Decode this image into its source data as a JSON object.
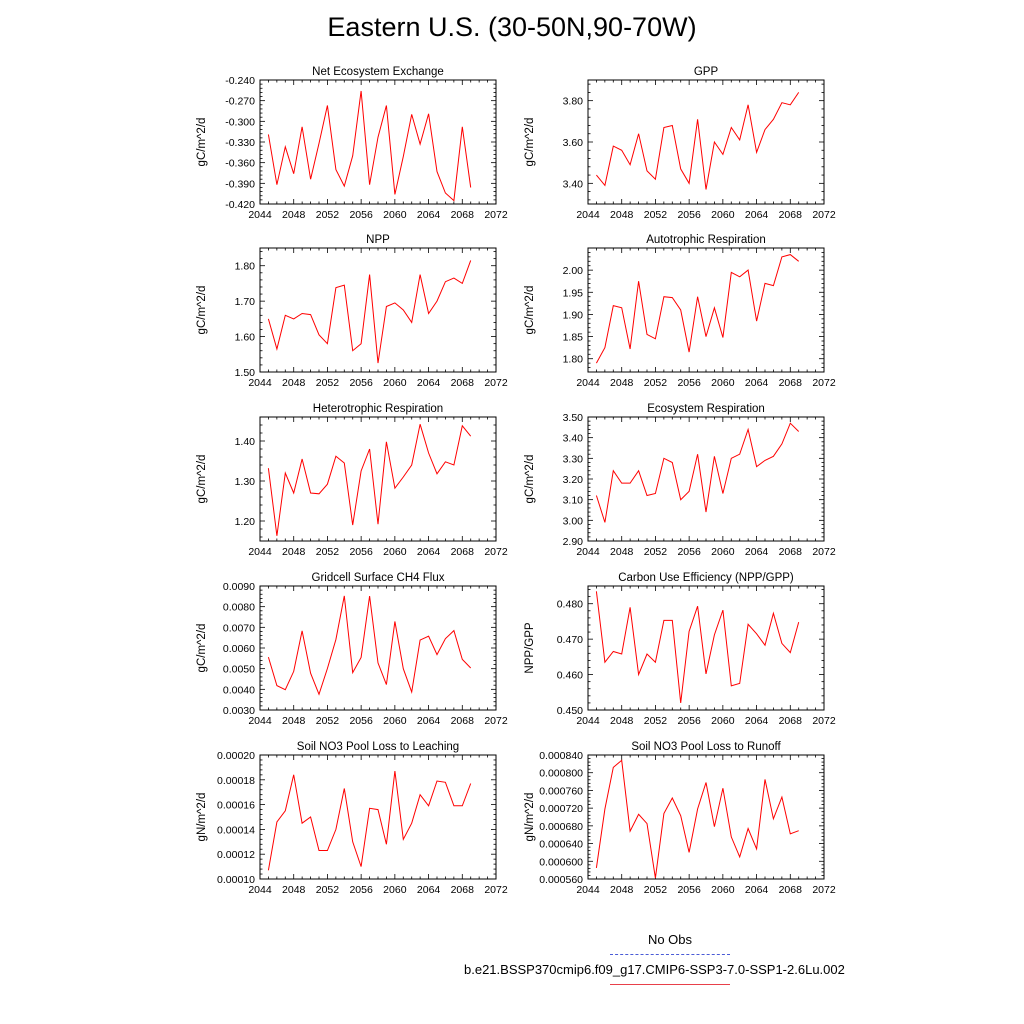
{
  "title": "Eastern U.S. (30-50N,90-70W)",
  "legend": {
    "placement": "bottom-right",
    "entries": [
      {
        "label": "No Obs",
        "color": "#4a5bd6",
        "style": "dashed"
      },
      {
        "label": "b.e21.BSSP370cmip6.f09_g17.CMIP6-SSP3-7.0-SSP1-2.6Lu.002",
        "color": "#ff0000",
        "style": "solid"
      }
    ]
  },
  "chart_data": [
    {
      "type": "line",
      "title": "Net Ecosystem Exchange",
      "ylabel": "gC/m^2/d",
      "xlim": [
        2044,
        2072
      ],
      "xticks": [
        2044,
        2048,
        2052,
        2056,
        2060,
        2064,
        2068,
        2072
      ],
      "ylim": [
        -0.42,
        -0.24
      ],
      "yticks": [
        "-0.420",
        "-0.390",
        "-0.360",
        "-0.330",
        "-0.300",
        "-0.270",
        "-0.240"
      ],
      "color": "#ff0000",
      "x": [
        2045,
        2046,
        2047,
        2048,
        2049,
        2050,
        2051,
        2052,
        2053,
        2054,
        2055,
        2056,
        2057,
        2058,
        2059,
        2060,
        2061,
        2062,
        2063,
        2064,
        2065,
        2066,
        2067,
        2068,
        2069
      ],
      "y": [
        -0.319,
        -0.392,
        -0.337,
        -0.376,
        -0.308,
        -0.384,
        -0.332,
        -0.277,
        -0.37,
        -0.394,
        -0.35,
        -0.256,
        -0.392,
        -0.323,
        -0.277,
        -0.406,
        -0.351,
        -0.29,
        -0.333,
        -0.289,
        -0.373,
        -0.404,
        -0.415,
        -0.308,
        -0.396
      ]
    },
    {
      "type": "line",
      "title": "GPP",
      "ylabel": "gC/m^2/d",
      "xlim": [
        2044,
        2072
      ],
      "xticks": [
        2044,
        2048,
        2052,
        2056,
        2060,
        2064,
        2068,
        2072
      ],
      "ylim": [
        3.3,
        3.9
      ],
      "yticks": [
        "3.40",
        "3.60",
        "3.80"
      ],
      "color": "#ff0000",
      "x": [
        2045,
        2046,
        2047,
        2048,
        2049,
        2050,
        2051,
        2052,
        2053,
        2054,
        2055,
        2056,
        2057,
        2058,
        2059,
        2060,
        2061,
        2062,
        2063,
        2064,
        2065,
        2066,
        2067,
        2068,
        2069
      ],
      "y": [
        3.44,
        3.39,
        3.58,
        3.56,
        3.49,
        3.64,
        3.46,
        3.42,
        3.67,
        3.68,
        3.47,
        3.4,
        3.71,
        3.37,
        3.6,
        3.54,
        3.67,
        3.61,
        3.78,
        3.55,
        3.66,
        3.71,
        3.79,
        3.78,
        3.84
      ]
    },
    {
      "type": "line",
      "title": "NPP",
      "ylabel": "gC/m^2/d",
      "xlim": [
        2044,
        2072
      ],
      "xticks": [
        2044,
        2048,
        2052,
        2056,
        2060,
        2064,
        2068,
        2072
      ],
      "ylim": [
        1.5,
        1.85
      ],
      "yticks": [
        "1.50",
        "1.60",
        "1.70",
        "1.80"
      ],
      "color": "#ff0000",
      "x": [
        2045,
        2046,
        2047,
        2048,
        2049,
        2050,
        2051,
        2052,
        2053,
        2054,
        2055,
        2056,
        2057,
        2058,
        2059,
        2060,
        2061,
        2062,
        2063,
        2064,
        2065,
        2066,
        2067,
        2068,
        2069
      ],
      "y": [
        1.65,
        1.565,
        1.66,
        1.65,
        1.665,
        1.662,
        1.605,
        1.58,
        1.738,
        1.745,
        1.56,
        1.58,
        1.775,
        1.525,
        1.685,
        1.695,
        1.675,
        1.64,
        1.775,
        1.665,
        1.7,
        1.755,
        1.765,
        1.75,
        1.815
      ]
    },
    {
      "type": "line",
      "title": "Autotrophic Respiration",
      "ylabel": "gC/m^2/d",
      "xlim": [
        2044,
        2072
      ],
      "xticks": [
        2044,
        2048,
        2052,
        2056,
        2060,
        2064,
        2068,
        2072
      ],
      "ylim": [
        1.77,
        2.05
      ],
      "yticks": [
        "1.80",
        "1.85",
        "1.90",
        "1.95",
        "2.00"
      ],
      "color": "#ff0000",
      "x": [
        2045,
        2046,
        2047,
        2048,
        2049,
        2050,
        2051,
        2052,
        2053,
        2054,
        2055,
        2056,
        2057,
        2058,
        2059,
        2060,
        2061,
        2062,
        2063,
        2064,
        2065,
        2066,
        2067,
        2068,
        2069
      ],
      "y": [
        1.79,
        1.825,
        1.92,
        1.915,
        1.822,
        1.975,
        1.855,
        1.845,
        1.94,
        1.938,
        1.91,
        1.815,
        1.94,
        1.85,
        1.915,
        1.848,
        1.995,
        1.985,
        2.0,
        1.885,
        1.97,
        1.965,
        2.03,
        2.035,
        2.02
      ]
    },
    {
      "type": "line",
      "title": "Heterotrophic Respiration",
      "ylabel": "gC/m^2/d",
      "xlim": [
        2044,
        2072
      ],
      "xticks": [
        2044,
        2048,
        2052,
        2056,
        2060,
        2064,
        2068,
        2072
      ],
      "ylim": [
        1.15,
        1.46
      ],
      "yticks": [
        "1.20",
        "1.30",
        "1.40"
      ],
      "color": "#ff0000",
      "x": [
        2045,
        2046,
        2047,
        2048,
        2049,
        2050,
        2051,
        2052,
        2053,
        2054,
        2055,
        2056,
        2057,
        2058,
        2059,
        2060,
        2061,
        2062,
        2063,
        2064,
        2065,
        2066,
        2067,
        2068,
        2069
      ],
      "y": [
        1.332,
        1.163,
        1.32,
        1.27,
        1.355,
        1.27,
        1.268,
        1.292,
        1.362,
        1.345,
        1.19,
        1.325,
        1.38,
        1.192,
        1.398,
        1.282,
        1.31,
        1.34,
        1.442,
        1.37,
        1.318,
        1.348,
        1.34,
        1.438,
        1.412
      ]
    },
    {
      "type": "line",
      "title": "Ecosystem Respiration",
      "ylabel": "gC/m^2/d",
      "xlim": [
        2044,
        2072
      ],
      "xticks": [
        2044,
        2048,
        2052,
        2056,
        2060,
        2064,
        2068,
        2072
      ],
      "ylim": [
        2.9,
        3.5
      ],
      "yticks": [
        "2.90",
        "3.00",
        "3.10",
        "3.20",
        "3.30",
        "3.40",
        "3.50"
      ],
      "color": "#ff0000",
      "x": [
        2045,
        2046,
        2047,
        2048,
        2049,
        2050,
        2051,
        2052,
        2053,
        2054,
        2055,
        2056,
        2057,
        2058,
        2059,
        2060,
        2061,
        2062,
        2063,
        2064,
        2065,
        2066,
        2067,
        2068,
        2069
      ],
      "y": [
        3.12,
        2.99,
        3.24,
        3.18,
        3.18,
        3.24,
        3.12,
        3.13,
        3.3,
        3.28,
        3.1,
        3.14,
        3.32,
        3.04,
        3.31,
        3.13,
        3.3,
        3.32,
        3.44,
        3.26,
        3.29,
        3.31,
        3.37,
        3.47,
        3.43
      ]
    },
    {
      "type": "line",
      "title": "Gridcell Surface CH4 Flux",
      "ylabel": "gC/m^2/d",
      "xlim": [
        2044,
        2072
      ],
      "xticks": [
        2044,
        2048,
        2052,
        2056,
        2060,
        2064,
        2068,
        2072
      ],
      "ylim": [
        0.003,
        0.009
      ],
      "yticks": [
        "0.0030",
        "0.0040",
        "0.0050",
        "0.0060",
        "0.0070",
        "0.0080",
        "0.0090"
      ],
      "color": "#ff0000",
      "x": [
        2045,
        2046,
        2047,
        2048,
        2049,
        2050,
        2051,
        2052,
        2053,
        2054,
        2055,
        2056,
        2057,
        2058,
        2059,
        2060,
        2061,
        2062,
        2063,
        2064,
        2065,
        2066,
        2067,
        2068,
        2069
      ],
      "y": [
        0.00556,
        0.00418,
        0.00398,
        0.00487,
        0.00683,
        0.00478,
        0.00376,
        0.00501,
        0.00641,
        0.00852,
        0.00481,
        0.00554,
        0.00851,
        0.00528,
        0.00423,
        0.00728,
        0.005,
        0.00387,
        0.00638,
        0.00657,
        0.00568,
        0.00645,
        0.00684,
        0.00545,
        0.00503
      ]
    },
    {
      "type": "line",
      "title": "Carbon Use Efficiency (NPP/GPP)",
      "ylabel": "NPP/GPP",
      "xlim": [
        2044,
        2072
      ],
      "xticks": [
        2044,
        2048,
        2052,
        2056,
        2060,
        2064,
        2068,
        2072
      ],
      "ylim": [
        0.45,
        0.485
      ],
      "yticks": [
        "0.450",
        "0.460",
        "0.470",
        "0.480"
      ],
      "color": "#ff0000",
      "x": [
        2045,
        2046,
        2047,
        2048,
        2049,
        2050,
        2051,
        2052,
        2053,
        2054,
        2055,
        2056,
        2057,
        2058,
        2059,
        2060,
        2061,
        2062,
        2063,
        2064,
        2065,
        2066,
        2067,
        2068,
        2069
      ],
      "y": [
        0.4835,
        0.4635,
        0.4665,
        0.4658,
        0.479,
        0.46,
        0.4658,
        0.4635,
        0.4753,
        0.4753,
        0.452,
        0.4722,
        0.4793,
        0.4602,
        0.4712,
        0.4782,
        0.4568,
        0.4575,
        0.4742,
        0.4715,
        0.4683,
        0.4773,
        0.4688,
        0.4662,
        0.4748
      ]
    },
    {
      "type": "line",
      "title": "Soil NO3 Pool Loss to Leaching",
      "ylabel": "gN/m^2/d",
      "xlim": [
        2044,
        2072
      ],
      "xticks": [
        2044,
        2048,
        2052,
        2056,
        2060,
        2064,
        2068,
        2072
      ],
      "ylim": [
        0.0001,
        0.0002
      ],
      "yticks": [
        "0.00010",
        "0.00012",
        "0.00014",
        "0.00016",
        "0.00018",
        "0.00020"
      ],
      "color": "#ff0000",
      "x": [
        2045,
        2046,
        2047,
        2048,
        2049,
        2050,
        2051,
        2052,
        2053,
        2054,
        2055,
        2056,
        2057,
        2058,
        2059,
        2060,
        2061,
        2062,
        2063,
        2064,
        2065,
        2066,
        2067,
        2068,
        2069
      ],
      "y": [
        0.000107,
        0.000146,
        0.000155,
        0.000184,
        0.000145,
        0.00015,
        0.000123,
        0.000123,
        0.00014,
        0.000173,
        0.00013,
        0.00011,
        0.000157,
        0.000156,
        0.000128,
        0.000187,
        0.000132,
        0.000145,
        0.000168,
        0.000159,
        0.000179,
        0.000178,
        0.000159,
        0.000159,
        0.000177
      ]
    },
    {
      "type": "line",
      "title": "Soil NO3 Pool Loss to Runoff",
      "ylabel": "gN/m^2/d",
      "xlim": [
        2044,
        2072
      ],
      "xticks": [
        2044,
        2048,
        2052,
        2056,
        2060,
        2064,
        2068,
        2072
      ],
      "ylim": [
        0.00056,
        0.00084
      ],
      "yticks": [
        "0.000560",
        "0.000600",
        "0.000640",
        "0.000680",
        "0.000720",
        "0.000760",
        "0.000800",
        "0.000840"
      ],
      "color": "#ff0000",
      "x": [
        2045,
        2046,
        2047,
        2048,
        2049,
        2050,
        2051,
        2052,
        2053,
        2054,
        2055,
        2056,
        2057,
        2058,
        2059,
        2060,
        2061,
        2062,
        2063,
        2064,
        2065,
        2066,
        2067,
        2068,
        2069
      ],
      "y": [
        0.000585,
        0.000718,
        0.000812,
        0.000828,
        0.000668,
        0.000706,
        0.000685,
        0.000562,
        0.000708,
        0.000743,
        0.000703,
        0.00062,
        0.000718,
        0.000778,
        0.000678,
        0.000765,
        0.000655,
        0.00061,
        0.000674,
        0.000628,
        0.000785,
        0.000696,
        0.000745,
        0.000662,
        0.000669
      ]
    }
  ]
}
